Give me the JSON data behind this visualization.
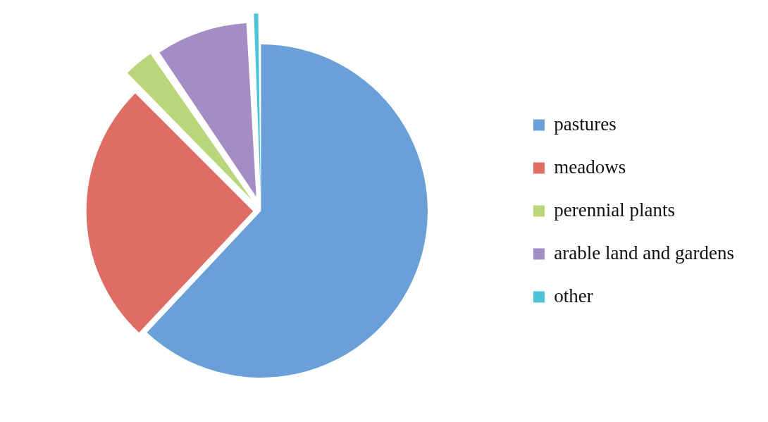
{
  "chart_data": {
    "type": "pie",
    "categories": [
      "pastures",
      "meadows",
      "perennial plants",
      "arable land and gardens",
      "other"
    ],
    "values": [
      62,
      25.5,
      3,
      8.7,
      0.8
    ],
    "colors": [
      "#6a9fd8",
      "#e06c66",
      "#b9d67a",
      "#a58cc5",
      "#4bc4d8"
    ],
    "legend": "right"
  }
}
